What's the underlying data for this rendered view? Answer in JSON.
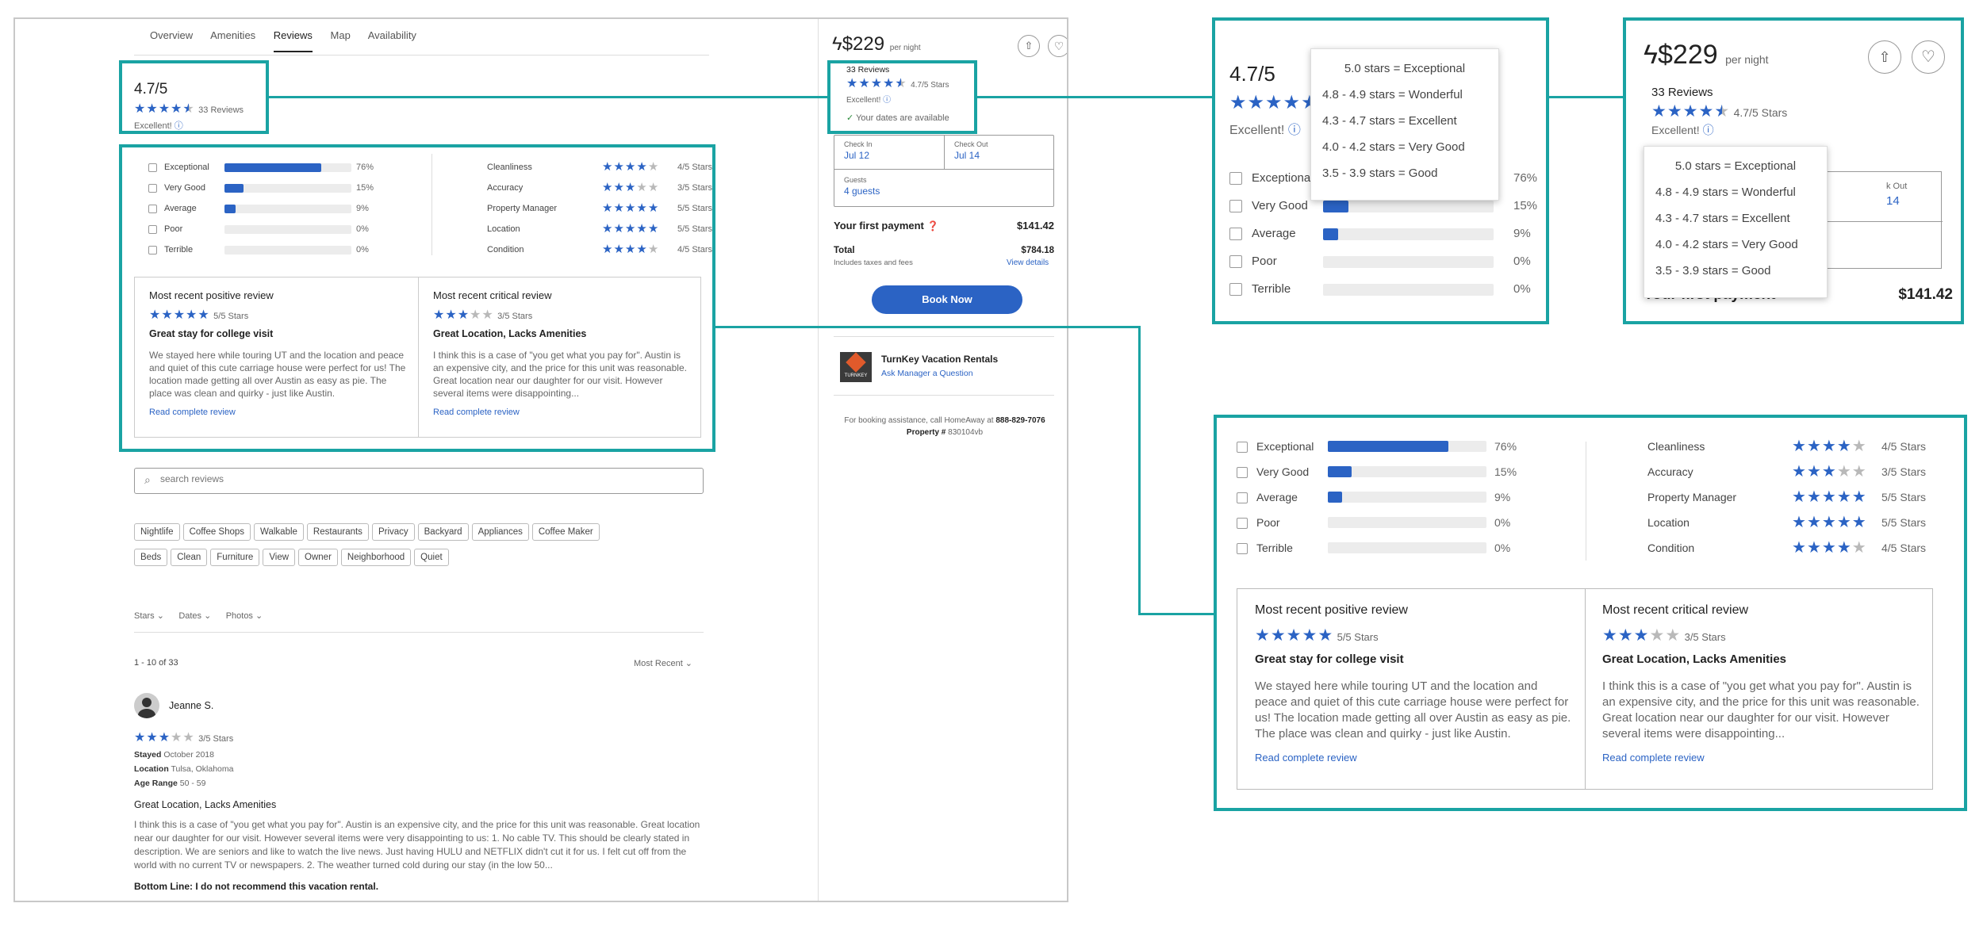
{
  "tabs": [
    "Overview",
    "Amenities",
    "Reviews",
    "Map",
    "Availability"
  ],
  "rating": {
    "score": "4.7/5",
    "count": "33 Reviews",
    "label": "Excellent!"
  },
  "breakdown": [
    {
      "label": "Exceptional",
      "pct": "76%",
      "v": 0.76
    },
    {
      "label": "Very Good",
      "pct": "15%",
      "v": 0.15
    },
    {
      "label": "Average",
      "pct": "9%",
      "v": 0.09
    },
    {
      "label": "Poor",
      "pct": "0%",
      "v": 0
    },
    {
      "label": "Terrible",
      "pct": "0%",
      "v": 0
    }
  ],
  "categories": [
    {
      "label": "Cleanliness",
      "stars": 4,
      "text": "4/5 Stars"
    },
    {
      "label": "Accuracy",
      "stars": 3,
      "text": "3/5 Stars"
    },
    {
      "label": "Property Manager",
      "stars": 5,
      "text": "5/5 Stars"
    },
    {
      "label": "Location",
      "stars": 5,
      "text": "5/5 Stars"
    },
    {
      "label": "Condition",
      "stars": 4,
      "text": "4/5 Stars"
    }
  ],
  "positive": {
    "heading": "Most recent positive review",
    "stars": 5,
    "stars_text": "5/5 Stars",
    "title": "Great stay for college visit",
    "body": "We stayed here while touring UT and the location and peace and quiet of this cute carriage house were perfect for us! The location made getting all over Austin as easy as pie. The place was clean and quirky - just like Austin.",
    "link": "Read complete review"
  },
  "critical": {
    "heading": "Most recent critical review",
    "stars": 3,
    "stars_text": "3/5 Stars",
    "title": "Great Location, Lacks Amenities",
    "body": "I think this is a case of \"you get what you pay for\". Austin is an expensive city, and the price for this unit was reasonable. Great location near our daughter for our visit. However several items were disappointing...",
    "link": "Read complete review"
  },
  "search": {
    "placeholder": "search reviews"
  },
  "tags": [
    "Nightlife",
    "Coffee Shops",
    "Walkable",
    "Restaurants",
    "Privacy",
    "Backyard",
    "Appliances",
    "Coffee Maker",
    "Beds",
    "Clean",
    "Furniture",
    "View",
    "Owner",
    "Neighborhood",
    "Quiet"
  ],
  "filters": [
    "Stars",
    "Dates",
    "Photos"
  ],
  "list": {
    "range": "1 - 10 of 33",
    "sort": "Most Recent"
  },
  "review": {
    "name": "Jeanne S.",
    "stars": 3,
    "stars_text": "3/5 Stars",
    "stayed_label": "Stayed",
    "stayed": "October 2018",
    "location_label": "Location",
    "location": "Tulsa, Oklahoma",
    "age_label": "Age Range",
    "age": "50 - 59",
    "title": "Great Location, Lacks Amenities",
    "body": "I think this is a case of \"you get what you pay for\". Austin is an expensive city, and the price for this unit was reasonable. Great location near our daughter for our visit. However several items were very disappointing to us: 1. No cable TV. This should be clearly stated in description. We are seniors and like to watch the live news. Just having HULU and NETFLIX didn't cut it for us. I felt cut off from the world with no current TV or newspapers. 2. The weather turned cold during our stay (in the low 50...",
    "bottom": "Bottom Line: I do not recommend this vacation rental."
  },
  "booking": {
    "price": "$229",
    "per": "per night",
    "reviews": "33 Reviews",
    "stars_text": "4.7/5 Stars",
    "label": "Excellent!",
    "available": "Your dates are available",
    "checkin_label": "Check In",
    "checkin": "Jul 12",
    "checkout_label": "Check Out",
    "checkout": "Jul 14",
    "guests_label": "Guests",
    "guests": "4 guests",
    "first_payment": "Your first payment",
    "first_amount": "$141.42",
    "total_label": "Total",
    "total": "$784.18",
    "taxes": "Includes taxes and fees",
    "view_details": "View details",
    "book": "Book Now",
    "manager": "TurnKey Vacation Rentals",
    "ask": "Ask Manager a Question",
    "logo_text": "TURNKEY",
    "assist_pre": "For booking assistance, call HomeAway at",
    "assist_phone": "888-829-7076",
    "property_label": "Property #",
    "property": "830104vb"
  },
  "tooltip": [
    {
      "range": "5.0 stars",
      "label": "Exceptional"
    },
    {
      "range": "4.8 - 4.9 stars",
      "label": "Wonderful"
    },
    {
      "range": "4.3 - 4.7 stars",
      "label": "Excellent"
    },
    {
      "range": "4.0 - 4.2 stars",
      "label": "Very Good"
    },
    {
      "range": "3.5 - 3.9 stars",
      "label": "Good"
    }
  ],
  "eq": "=",
  "partial": {
    "ck": "k Out",
    "d": "14"
  },
  "colors": {
    "accent": "#2b63c4",
    "callout": "#1aa3a3"
  }
}
